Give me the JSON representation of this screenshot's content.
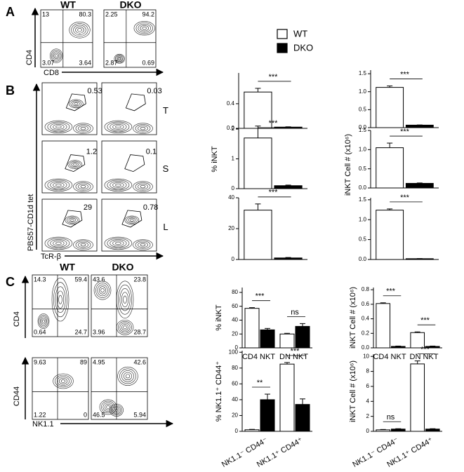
{
  "panel_labels": [
    "A",
    "B",
    "C"
  ],
  "flow_a": {
    "columns": [
      "WT",
      "DKO"
    ],
    "y_label": "CD4",
    "x_label": "CD8",
    "plots": [
      [
        13,
        80.3,
        3.07,
        3.64
      ],
      [
        2.25,
        94.2,
        2.87,
        0.69
      ]
    ]
  },
  "flow_b": {
    "y_label": "PBS57-CD1d tet",
    "x_label": "TcR-β",
    "rows": [
      {
        "tissue": "T",
        "gates": [
          0.53,
          0.03
        ]
      },
      {
        "tissue": "S",
        "gates": [
          1.2,
          0.1
        ]
      },
      {
        "tissue": "L",
        "gates": [
          29,
          0.78
        ]
      }
    ]
  },
  "flow_c": {
    "columns": [
      "WT",
      "DKO"
    ],
    "x_label": "NK1.1",
    "rows": [
      {
        "y_label": "CD4",
        "plots": [
          [
            14.3,
            59.4,
            0.64,
            24.7
          ],
          [
            43.6,
            23.8,
            3.96,
            28.7
          ]
        ]
      },
      {
        "y_label": "CD44",
        "plots": [
          [
            9.63,
            89,
            1.22,
            0
          ],
          [
            4.95,
            42.6,
            46.5,
            5.94
          ]
        ]
      }
    ]
  },
  "chart_data": [
    {
      "type": "bar",
      "categories": [
        null
      ],
      "series": [
        {
          "name": "WT",
          "color": "#ffffff",
          "values": [
            0.59
          ],
          "errors": [
            0.06
          ]
        },
        {
          "name": "DKO",
          "color": "#000000",
          "values": [
            0.02
          ],
          "errors": [
            0.005
          ]
        }
      ],
      "ylim": [
        0,
        0.9
      ],
      "yticks": [
        {
          "value": 0,
          "label": "0.0"
        },
        0.4
      ],
      "annotations": [
        "***"
      ]
    },
    {
      "type": "bar",
      "y_label": "% iNKT",
      "categories": [
        null
      ],
      "series": [
        {
          "name": "WT",
          "color": "#ffffff",
          "values": [
            1.7
          ],
          "errors": [
            0.4
          ]
        },
        {
          "name": "DKO",
          "color": "#000000",
          "values": [
            0.1
          ],
          "errors": [
            0.02
          ]
        }
      ],
      "ylim": [
        0,
        2
      ],
      "yticks": [
        0,
        1,
        2
      ],
      "annotations": [
        "***"
      ]
    },
    {
      "type": "bar",
      "categories": [
        null
      ],
      "series": [
        {
          "name": "WT",
          "color": "#ffffff",
          "values": [
            32
          ],
          "errors": [
            4
          ]
        },
        {
          "name": "DKO",
          "color": "#000000",
          "values": [
            1
          ],
          "errors": [
            0.3
          ]
        }
      ],
      "ylim": [
        0,
        40
      ],
      "yticks": [
        0,
        20,
        40
      ],
      "annotations": [
        "***"
      ]
    },
    {
      "type": "bar",
      "categories": [
        null
      ],
      "series": [
        {
          "name": "WT",
          "color": "#ffffff",
          "values": [
            1.12
          ],
          "errors": [
            0.04
          ]
        },
        {
          "name": "DKO",
          "color": "#000000",
          "values": [
            0.07
          ],
          "errors": [
            0.005
          ]
        }
      ],
      "ylim": [
        0,
        1.6
      ],
      "yticks": [
        {
          "value": 0,
          "label": "0.0"
        },
        0.5,
        {
          "value": 1,
          "label": "1.0"
        },
        1.5
      ],
      "annotations": [
        "***"
      ]
    },
    {
      "type": "bar",
      "y_label": "iNKT Cell # (x10⁶)",
      "categories": [
        null
      ],
      "series": [
        {
          "name": "WT",
          "color": "#ffffff",
          "values": [
            1.05
          ],
          "errors": [
            0.12
          ]
        },
        {
          "name": "DKO",
          "color": "#000000",
          "values": [
            0.12
          ],
          "errors": [
            0.01
          ]
        }
      ],
      "ylim": [
        0,
        1.5
      ],
      "yticks": [
        {
          "value": 0,
          "label": "0.0"
        },
        0.5,
        {
          "value": 1,
          "label": "1.0"
        },
        1.5
      ],
      "annotations": [
        "***"
      ]
    },
    {
      "type": "bar",
      "categories": [
        null
      ],
      "series": [
        {
          "name": "WT",
          "color": "#ffffff",
          "values": [
            1.24
          ],
          "errors": [
            0.03
          ]
        },
        {
          "name": "DKO",
          "color": "#000000",
          "values": [
            0.02
          ],
          "errors": [
            0.003
          ]
        }
      ],
      "ylim": [
        0,
        1.55
      ],
      "yticks": [
        {
          "value": 0,
          "label": "0.0"
        },
        0.5,
        {
          "value": 1,
          "label": "1.0"
        },
        1.5
      ],
      "annotations": [
        "***"
      ]
    },
    {
      "type": "bar",
      "y_label": "% iNKT",
      "categories": [
        "CD4 NKT",
        "DN NKT"
      ],
      "series": [
        {
          "name": "WT",
          "color": "#ffffff",
          "values": [
            57,
            20
          ],
          "errors": [
            1,
            1
          ]
        },
        {
          "name": "DKO",
          "color": "#000000",
          "values": [
            26,
            31
          ],
          "errors": [
            2,
            4
          ]
        }
      ],
      "ylim": [
        0,
        87
      ],
      "yticks": [
        0,
        20,
        40,
        60,
        80
      ],
      "annotations": [
        "***",
        "ns"
      ]
    },
    {
      "type": "bar",
      "y_label": "iNKT Cell # (x10⁶)",
      "categories": [
        "CD4 NKT",
        "DN NKT"
      ],
      "series": [
        {
          "name": "WT",
          "color": "#ffffff",
          "values": [
            0.61,
            0.21
          ],
          "errors": [
            0.01,
            0.01
          ]
        },
        {
          "name": "DKO",
          "color": "#000000",
          "values": [
            0.02,
            0.02
          ],
          "errors": [
            0.005,
            0.005
          ]
        }
      ],
      "ylim": [
        0,
        0.83
      ],
      "yticks": [
        {
          "value": 0,
          "label": "0.0"
        },
        0.2,
        0.4,
        0.6,
        0.8
      ],
      "annotations": [
        "***",
        "***"
      ]
    },
    {
      "type": "bar",
      "y_label": "% NK1.1⁺ CD44⁺",
      "categories": [
        "NK1.1⁻ CD44⁻",
        "NK1.1⁺ CD44⁺"
      ],
      "series": [
        {
          "name": "WT",
          "color": "#ffffff",
          "values": [
            2,
            85
          ],
          "errors": [
            0.5,
            2
          ]
        },
        {
          "name": "DKO",
          "color": "#000000",
          "values": [
            40,
            34
          ],
          "errors": [
            7,
            7
          ]
        }
      ],
      "ylim": [
        0,
        102
      ],
      "yticks": [
        0,
        20,
        40,
        60,
        80,
        100
      ],
      "annotations": [
        "**",
        "***"
      ]
    },
    {
      "type": "bar",
      "y_label": "iNKT Cell # (x10⁶)",
      "categories": [
        "NK1.1⁻ CD44⁻",
        "NK1.1⁺ CD44⁺"
      ],
      "series": [
        {
          "name": "WT",
          "color": "#ffffff",
          "values": [
            0.2,
            9
          ],
          "errors": [
            0.05,
            0.4
          ]
        },
        {
          "name": "DKO",
          "color": "#000000",
          "values": [
            0.3,
            0.3
          ],
          "errors": [
            0.05,
            0.05
          ]
        }
      ],
      "ylim": [
        0,
        10.3
      ],
      "yticks": [
        0,
        2,
        4,
        6,
        8,
        10
      ],
      "annotations": [
        "ns",
        "***"
      ]
    }
  ]
}
